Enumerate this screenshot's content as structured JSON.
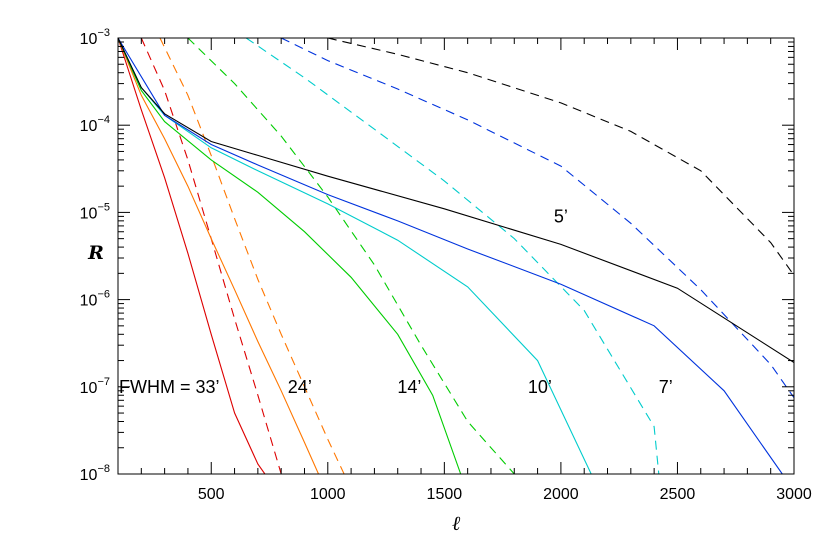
{
  "chart_data": {
    "type": "line",
    "xlabel": "ℓ",
    "ylabel": "R",
    "xlim": [
      100,
      3000
    ],
    "ylim_log10": [
      -8,
      -3
    ],
    "y_scale": "log",
    "grid": false,
    "x_ticks": [
      500,
      1000,
      1500,
      2000,
      2500,
      3000
    ],
    "y_ticks": [
      {
        "base": "10",
        "exp": "−3"
      },
      {
        "base": "10",
        "exp": "−4"
      },
      {
        "base": "10",
        "exp": "−5"
      },
      {
        "base": "10",
        "exp": "−6"
      },
      {
        "base": "10",
        "exp": "−7"
      },
      {
        "base": "10",
        "exp": "−8"
      }
    ],
    "annotations": [
      {
        "text": "FWHM = 33’",
        "x": 320,
        "y": 1e-07
      },
      {
        "text": "24’",
        "x": 880,
        "y": 1e-07
      },
      {
        "text": "14’",
        "x": 1350,
        "y": 1e-07
      },
      {
        "text": "10’",
        "x": 1910,
        "y": 1e-07
      },
      {
        "text": "7’",
        "x": 2450,
        "y": 1e-07
      },
      {
        "text": "5’",
        "x": 2000,
        "y": 9e-06
      }
    ],
    "series": [
      {
        "group": "33’",
        "style": "solid",
        "color": "#dd0000",
        "x": [
          100,
          200,
          300,
          400,
          500,
          600,
          700,
          730
        ],
        "y": [
          0.001,
          0.00015,
          2.5e-05,
          3.4e-06,
          4e-07,
          5e-08,
          1.3e-08,
          1e-08
        ]
      },
      {
        "group": "33’",
        "style": "dashed",
        "color": "#dd0000",
        "x": [
          200,
          300,
          400,
          500,
          600,
          700,
          800
        ],
        "y": [
          0.001,
          0.00025,
          4e-05,
          5e-06,
          6e-07,
          8e-08,
          1e-08
        ]
      },
      {
        "group": "24’",
        "style": "solid",
        "color": "#ff7700",
        "x": [
          100,
          200,
          300,
          400,
          500,
          600,
          700,
          800,
          900,
          960
        ],
        "y": [
          0.001,
          0.00022,
          7e-05,
          2e-05,
          5e-06,
          1.3e-06,
          3.3e-07,
          9e-08,
          2.3e-08,
          1e-08
        ]
      },
      {
        "group": "24’",
        "style": "dashed",
        "color": "#ff7700",
        "x": [
          280,
          400,
          500,
          600,
          700,
          800,
          900,
          1000,
          1070
        ],
        "y": [
          0.001,
          0.00022,
          4.5e-05,
          8.5e-06,
          1.7e-06,
          4e-07,
          1e-07,
          2.5e-08,
          1e-08
        ]
      },
      {
        "group": "14’",
        "style": "solid",
        "color": "#00cc00",
        "x": [
          100,
          200,
          300,
          500,
          700,
          900,
          1100,
          1300,
          1450,
          1570
        ],
        "y": [
          0.001,
          0.00025,
          0.00011,
          4e-05,
          1.7e-05,
          6e-06,
          1.8e-06,
          4e-07,
          8e-08,
          1e-08
        ]
      },
      {
        "group": "14’",
        "style": "dashed",
        "color": "#00cc00",
        "x": [
          400,
          600,
          800,
          1000,
          1200,
          1400,
          1600,
          1800
        ],
        "y": [
          0.001,
          0.0003,
          7.5e-05,
          1.5e-05,
          2.5e-06,
          3e-07,
          4e-08,
          1e-08
        ]
      },
      {
        "group": "10’",
        "style": "solid",
        "color": "#00cccc",
        "x": [
          100,
          200,
          300,
          500,
          700,
          1000,
          1300,
          1600,
          1900,
          2130
        ],
        "y": [
          0.001,
          0.00027,
          0.00013,
          5.5e-05,
          3e-05,
          1.25e-05,
          4.8e-06,
          1.4e-06,
          2e-07,
          1e-08
        ]
      },
      {
        "group": "10’",
        "style": "dashed",
        "color": "#00cccc",
        "x": [
          650,
          900,
          1200,
          1500,
          1800,
          2100,
          2400,
          2420
        ],
        "y": [
          0.001,
          0.00035,
          9e-05,
          2.3e-05,
          5e-06,
          7.5e-07,
          3.5e-08,
          1e-08
        ]
      },
      {
        "group": "7’",
        "style": "solid",
        "color": "#0033dd",
        "x": [
          100,
          300,
          500,
          700,
          1000,
          1300,
          1600,
          2000,
          2400,
          2700,
          2950
        ],
        "y": [
          0.001,
          0.00013,
          6e-05,
          3.5e-05,
          1.6e-05,
          8e-06,
          3.8e-06,
          1.5e-06,
          5e-07,
          9e-08,
          1e-08
        ]
      },
      {
        "group": "7’",
        "style": "dashed",
        "color": "#0033dd",
        "x": [
          800,
          1000,
          1300,
          1600,
          2000,
          2300,
          2600,
          2900,
          3000
        ],
        "y": [
          0.001,
          0.00055,
          0.00026,
          0.000115,
          3.4e-05,
          7.5e-06,
          1.3e-06,
          1.8e-07,
          7.5e-08
        ]
      },
      {
        "group": "5’",
        "style": "solid",
        "color": "#000000",
        "x": [
          100,
          200,
          300,
          500,
          700,
          1000,
          1500,
          2000,
          2500,
          3000
        ],
        "y": [
          0.001,
          0.00027,
          0.000135,
          6.5e-05,
          4.5e-05,
          2.6e-05,
          1.1e-05,
          4.3e-06,
          1.35e-06,
          1.9e-07
        ]
      },
      {
        "group": "5’",
        "style": "dashed",
        "color": "#000000",
        "x": [
          1000,
          1300,
          1600,
          2000,
          2300,
          2600,
          2900,
          3000
        ],
        "y": [
          0.001,
          0.00065,
          0.0004,
          0.00018,
          8.5e-05,
          3e-05,
          4.5e-06,
          1.9e-06
        ]
      }
    ]
  }
}
